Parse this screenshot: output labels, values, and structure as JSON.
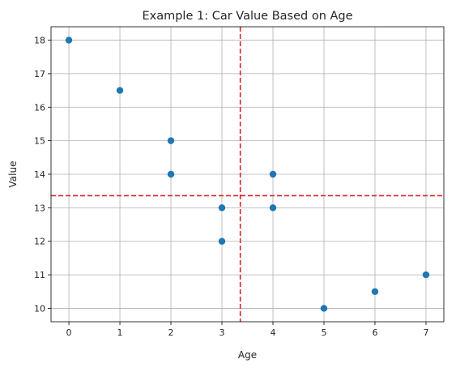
{
  "chart_data": {
    "type": "scatter",
    "title": "Example 1: Car Value Based on Age",
    "xlabel": "Age",
    "ylabel": "Value",
    "xlim": [
      -0.35,
      7.35
    ],
    "ylim": [
      9.6,
      18.4
    ],
    "xticks": [
      0,
      1,
      2,
      3,
      4,
      5,
      6,
      7
    ],
    "yticks": [
      10,
      11,
      12,
      13,
      14,
      15,
      16,
      17,
      18
    ],
    "grid": true,
    "points": [
      {
        "x": 0,
        "y": 18
      },
      {
        "x": 1,
        "y": 16.5
      },
      {
        "x": 2,
        "y": 15
      },
      {
        "x": 2,
        "y": 14
      },
      {
        "x": 3,
        "y": 13
      },
      {
        "x": 3,
        "y": 12
      },
      {
        "x": 4,
        "y": 14
      },
      {
        "x": 4,
        "y": 13
      },
      {
        "x": 5,
        "y": 10
      },
      {
        "x": 6,
        "y": 10.5
      },
      {
        "x": 7,
        "y": 11
      }
    ],
    "reference_lines": {
      "vertical_x": 3.36,
      "horizontal_y": 13.36,
      "style": "dashed"
    },
    "colors": {
      "points": "#1f77b4",
      "reference_lines": "#d62728",
      "grid": "#b0b0b0"
    }
  }
}
